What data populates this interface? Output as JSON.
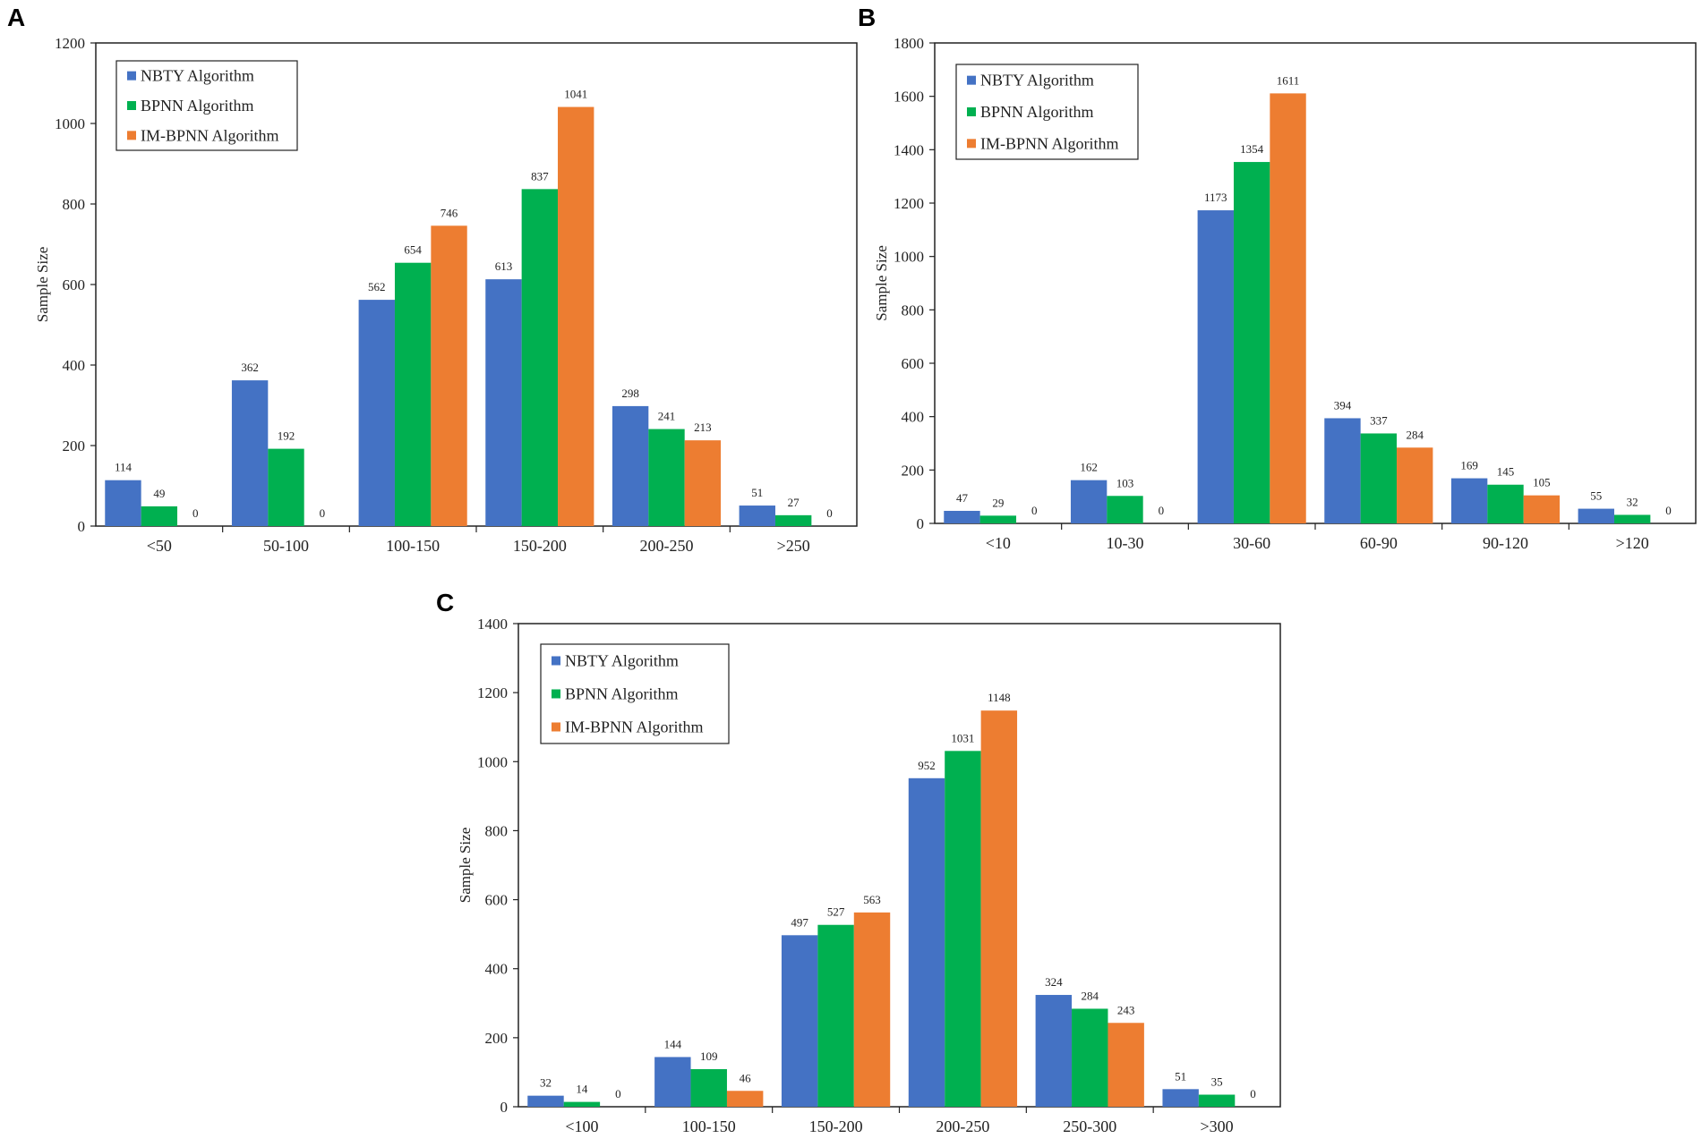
{
  "colors": {
    "nbty": "#4472C4",
    "bpnn": "#00B050",
    "imbpnn": "#ED7D31"
  },
  "chart_data": [
    {
      "panel": "A",
      "type": "bar",
      "categories": [
        "<50",
        "50-100",
        "100-150",
        "150-200",
        "200-250",
        ">250"
      ],
      "series": [
        {
          "name": "NBTY Algorithm",
          "values": [
            114,
            362,
            562,
            613,
            298,
            51
          ]
        },
        {
          "name": "BPNN Algorithm",
          "values": [
            49,
            192,
            654,
            837,
            241,
            27
          ]
        },
        {
          "name": "IM-BPNN Algorithm",
          "values": [
            0,
            0,
            746,
            1041,
            213,
            0
          ]
        }
      ],
      "ylabel": "Sample Size",
      "xlabel": "",
      "ylim": [
        0,
        1200
      ],
      "yticks": [
        0,
        200,
        400,
        600,
        800,
        1000,
        1200
      ],
      "legend": "top-left"
    },
    {
      "panel": "B",
      "type": "bar",
      "categories": [
        "<10",
        "10-30",
        "30-60",
        "60-90",
        "90-120",
        ">120"
      ],
      "series": [
        {
          "name": "NBTY Algorithm",
          "values": [
            47,
            162,
            1173,
            394,
            169,
            55
          ]
        },
        {
          "name": "BPNN Algorithm",
          "values": [
            29,
            103,
            1354,
            337,
            145,
            32
          ]
        },
        {
          "name": "IM-BPNN Algorithm",
          "values": [
            0,
            0,
            1611,
            284,
            105,
            0
          ]
        }
      ],
      "ylabel": "Sample Size",
      "xlabel": "",
      "ylim": [
        0,
        1800
      ],
      "yticks": [
        0,
        200,
        400,
        600,
        800,
        1000,
        1200,
        1400,
        1600,
        1800
      ],
      "legend": "top-left"
    },
    {
      "panel": "C",
      "type": "bar",
      "categories": [
        "<100",
        "100-150",
        "150-200",
        "200-250",
        "250-300",
        ">300"
      ],
      "series": [
        {
          "name": "NBTY Algorithm",
          "values": [
            32,
            144,
            497,
            952,
            324,
            51
          ]
        },
        {
          "name": "BPNN Algorithm",
          "values": [
            14,
            109,
            527,
            1031,
            284,
            35
          ]
        },
        {
          "name": "IM-BPNN Algorithm",
          "values": [
            0,
            46,
            563,
            1148,
            243,
            0
          ]
        }
      ],
      "ylabel": "Sample Size",
      "xlabel": "",
      "ylim": [
        0,
        1400
      ],
      "yticks": [
        0,
        200,
        400,
        600,
        800,
        1000,
        1200,
        1400
      ],
      "legend": "top-left"
    }
  ]
}
